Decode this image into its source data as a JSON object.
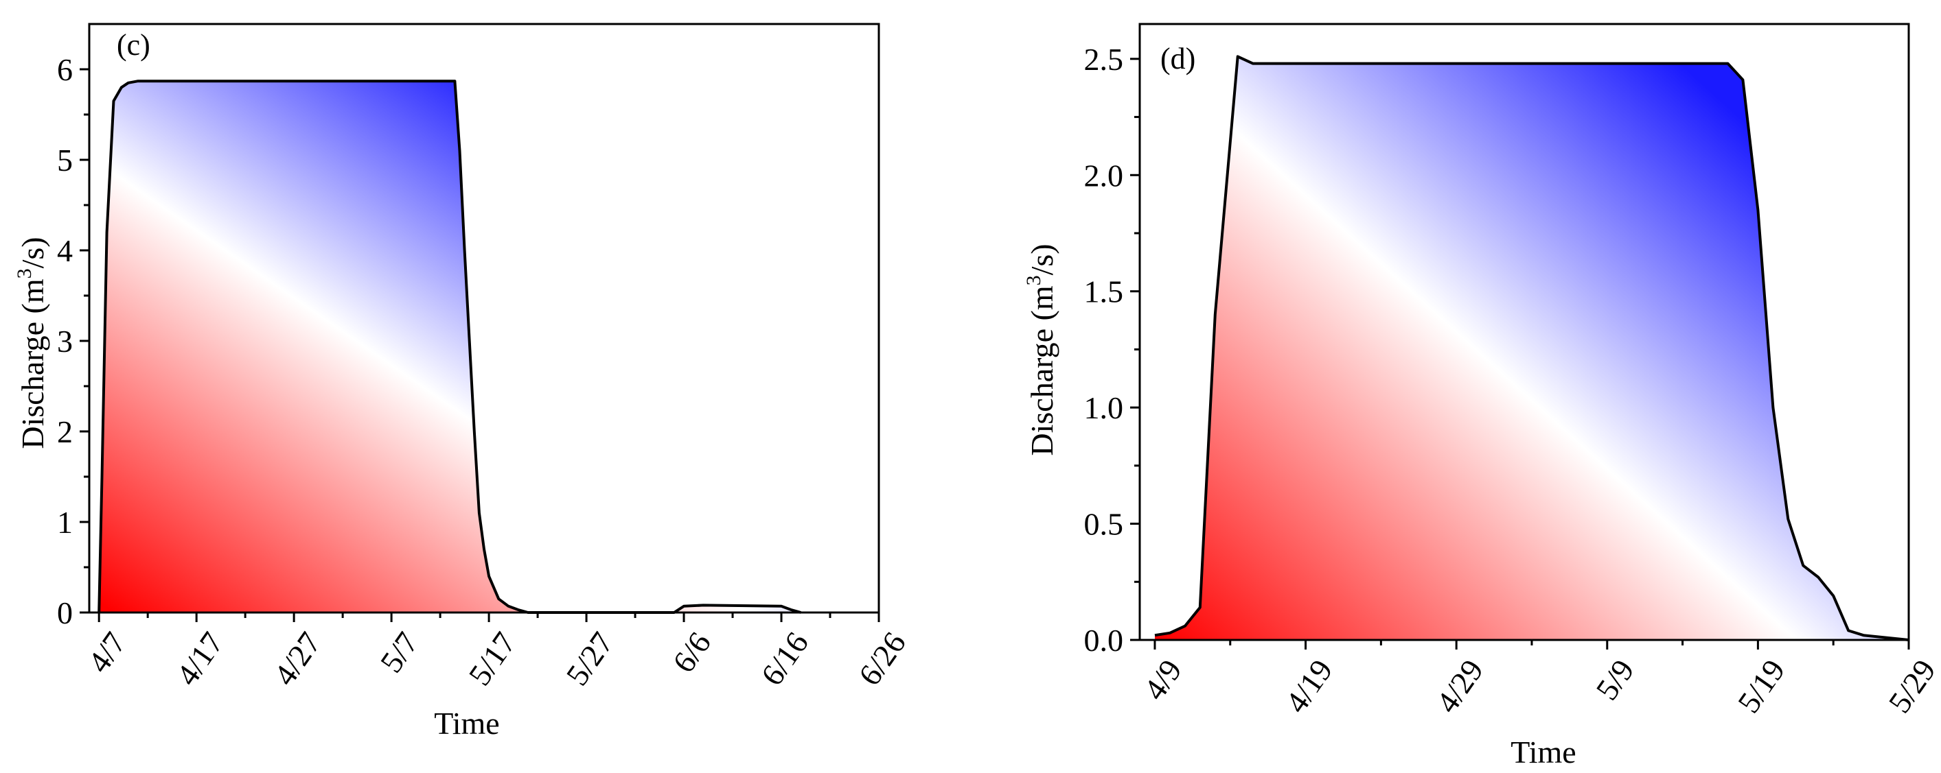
{
  "chart_data": [
    {
      "type": "area",
      "panel_label": "(c)",
      "xlabel": "Time",
      "ylabel": "Discharge (m³/s)",
      "ylabel_parts": {
        "pre": "Discharge (m",
        "sup": "3",
        "post": "/s)"
      },
      "x_tick_labels": [
        "4/7",
        "4/17",
        "4/27",
        "5/7",
        "5/17",
        "5/27",
        "6/6",
        "6/16",
        "6/26"
      ],
      "x_tick_days": [
        0,
        10,
        20,
        30,
        40,
        50,
        60,
        70,
        80
      ],
      "xlim_days": [
        -1,
        80
      ],
      "y_ticks": [
        "0",
        "1",
        "2",
        "3",
        "4",
        "5",
        "6"
      ],
      "y_tick_values": [
        0,
        1,
        2,
        3,
        4,
        5,
        6
      ],
      "ylim": [
        0,
        6.5
      ],
      "grid": false,
      "fill": "diagonal gradient red (bottom-left) to white to blue (top-right)",
      "colors": {
        "low": "#ff0000",
        "mid": "#ffffff",
        "high": "#1a1aff",
        "line": "#000000"
      },
      "x_days_from": "4/7",
      "series": [
        {
          "x_days": [
            0,
            0.3,
            0.8,
            1.5,
            2.3,
            3,
            4,
            6,
            10,
            20,
            30,
            36.5,
            37,
            37.5,
            38,
            38.5,
            39,
            39.5,
            40,
            41,
            42,
            43,
            44,
            50,
            59,
            60,
            62,
            70,
            71,
            72
          ],
          "values": [
            0,
            1.5,
            4.2,
            5.65,
            5.8,
            5.85,
            5.87,
            5.87,
            5.87,
            5.87,
            5.87,
            5.87,
            5.1,
            4.0,
            3.0,
            2.0,
            1.1,
            0.7,
            0.4,
            0.15,
            0.07,
            0.03,
            0.0,
            0.0,
            0.0,
            0.07,
            0.08,
            0.07,
            0.03,
            0.0
          ]
        }
      ]
    },
    {
      "type": "area",
      "panel_label": "(d)",
      "xlabel": "Time",
      "ylabel": "Discharge (m³/s)",
      "ylabel_parts": {
        "pre": "Discharge (m",
        "sup": "3",
        "post": "/s)"
      },
      "x_tick_labels": [
        "4/9",
        "4/19",
        "4/29",
        "5/9",
        "5/19",
        "5/29"
      ],
      "x_tick_days": [
        0,
        10,
        20,
        30,
        40,
        50
      ],
      "xlim_days": [
        -1,
        50
      ],
      "y_ticks": [
        "0.0",
        "0.5",
        "1.0",
        "1.5",
        "2.0",
        "2.5"
      ],
      "y_tick_values": [
        0,
        0.5,
        1.0,
        1.5,
        2.0,
        2.5
      ],
      "ylim": [
        0,
        2.65
      ],
      "grid": false,
      "fill": "diagonal gradient red (bottom-left) to white to blue (top-right)",
      "colors": {
        "low": "#ff0000",
        "mid": "#ffffff",
        "high": "#1a1aff",
        "line": "#000000"
      },
      "x_days_from": "4/9",
      "series": [
        {
          "x_days": [
            0,
            1,
            2,
            3,
            4,
            5.5,
            6.5,
            7.5,
            20,
            30,
            38,
            39,
            40,
            41,
            42,
            43,
            44,
            45,
            46,
            47,
            50
          ],
          "values": [
            0.02,
            0.03,
            0.06,
            0.14,
            1.4,
            2.51,
            2.48,
            2.48,
            2.48,
            2.48,
            2.48,
            2.41,
            1.85,
            1.0,
            0.52,
            0.32,
            0.27,
            0.19,
            0.04,
            0.02,
            0.0
          ]
        }
      ]
    }
  ]
}
